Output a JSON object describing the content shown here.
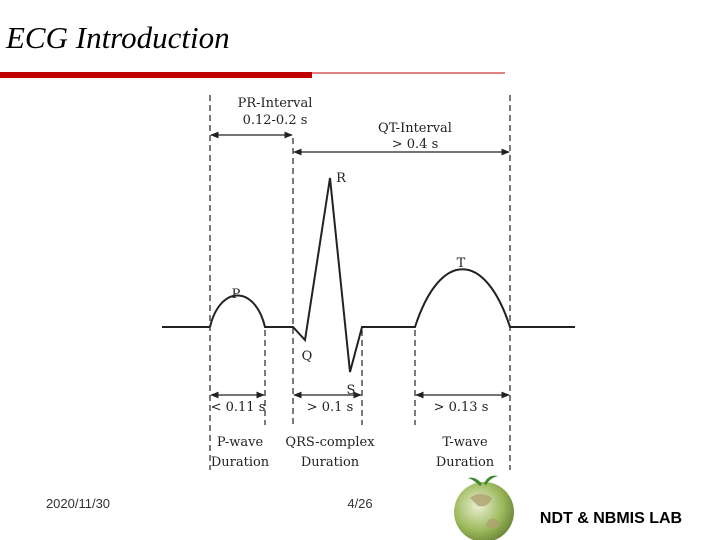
{
  "header": {
    "title": "ECG Introduction"
  },
  "diagram": {
    "intervals": [
      {
        "name": "PR-Interval",
        "value": "0.12-0.2 s"
      },
      {
        "name": "QT-Interval",
        "value": "> 0.4 s"
      }
    ],
    "waves": [
      "P",
      "Q",
      "R",
      "S",
      "T"
    ],
    "durations": [
      {
        "value": "< 0.11 s",
        "name": "P-wave",
        "sub": "Duration"
      },
      {
        "value": "> 0.1 s",
        "name": "QRS-complex",
        "sub": "Duration"
      },
      {
        "value": "> 0.13 s",
        "name": "T-wave",
        "sub": "Duration"
      }
    ]
  },
  "footer": {
    "date": "2020/11/30",
    "page": "4/26",
    "lab": "NDT & NBMIS LAB"
  }
}
